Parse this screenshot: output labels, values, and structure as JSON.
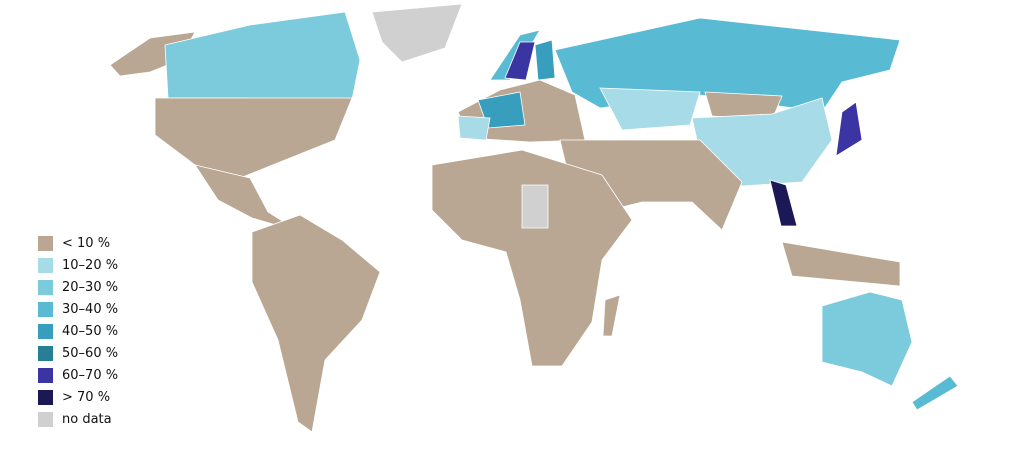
{
  "legend": [
    {
      "label": "< 10 %",
      "color": "#b9a693",
      "key": "c0"
    },
    {
      "label": "10–20 %",
      "color": "#a8dbe8",
      "key": "c1"
    },
    {
      "label": "20–30 %",
      "color": "#7ccbdd",
      "key": "c2"
    },
    {
      "label": "30–40 %",
      "color": "#59bad4",
      "key": "c3"
    },
    {
      "label": "40–50 %",
      "color": "#379fbd",
      "key": "c4"
    },
    {
      "label": "50–60 %",
      "color": "#277f95",
      "key": "c5"
    },
    {
      "label": "60–70 %",
      "color": "#3b35a3",
      "key": "c6"
    },
    {
      "label": "> 70 %",
      "color": "#1c1856",
      "key": "c7"
    },
    {
      "label": "no data",
      "color": "#d0d0d0",
      "key": "nd"
    }
  ]
}
